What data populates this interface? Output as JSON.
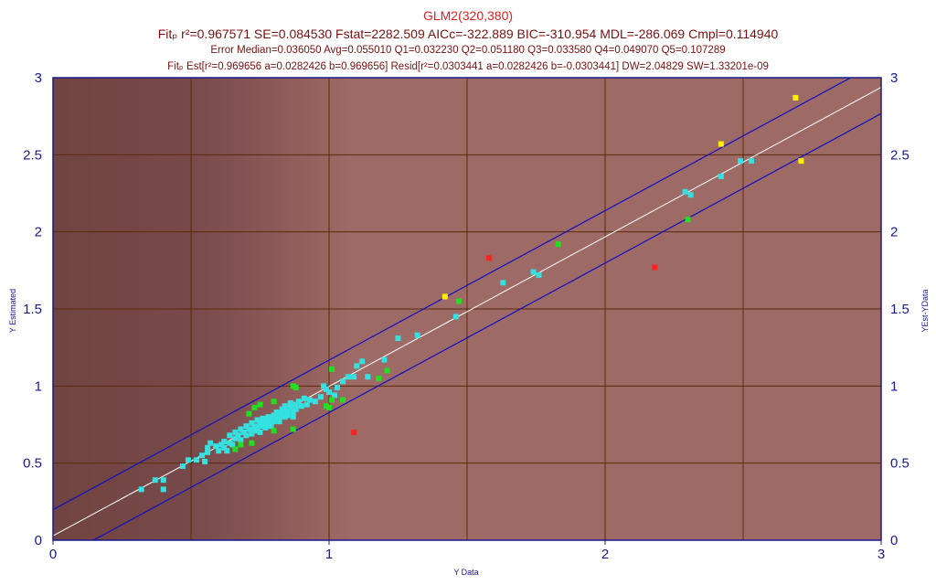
{
  "header": {
    "title": "GLM2(320,380)",
    "fit_line": "Fitₚ r²=0.967571 SE=0.084530 Fstat=2282.509 AICc=-322.889 BIC=-310.954 MDL=-286.069 Cmpl=0.114940",
    "error_line": "Error Median=0.036050 Avg=0.055010 Q1=0.032230 Q2=0.051180 Q3=0.033580 Q4=0.049070 Q5=0.107289",
    "est_line": "Fitₚ Est[r²=0.969656 a=0.0282426 b=0.969656] Resid[r²=0.0303441 a=0.0282426 b=-0.0303441] DW=2.04829 SW=1.33201e-09"
  },
  "chart_data": {
    "type": "scatter",
    "xlabel": "Y Data",
    "ylabel": "Y Estimated",
    "y2label": "YEst-YData",
    "xlim": [
      0,
      3
    ],
    "ylim": [
      0,
      3
    ],
    "x_ticks": [
      "0",
      "1",
      "2",
      "3"
    ],
    "y_ticks": [
      "0",
      "0.5",
      "1",
      "1.5",
      "2",
      "2.5",
      "3"
    ],
    "grid": true,
    "colors": {
      "background_dark": "#7a4a48",
      "background_light": "#9e6a66",
      "grid": "#5a2a08",
      "bounds": "#1010c0",
      "fit_line": "#ffffff",
      "border": "#1a1a8c"
    },
    "fit_line": {
      "a": 0.0282426,
      "b": 0.969656
    },
    "bounds_offset": 0.17,
    "series": [
      {
        "color": "#35e0e0",
        "points": [
          [
            0.32,
            0.33
          ],
          [
            0.37,
            0.39
          ],
          [
            0.4,
            0.39
          ],
          [
            0.4,
            0.33
          ],
          [
            0.47,
            0.48
          ],
          [
            0.49,
            0.52
          ],
          [
            0.52,
            0.52
          ],
          [
            0.54,
            0.55
          ],
          [
            0.55,
            0.51
          ],
          [
            0.56,
            0.57
          ],
          [
            0.56,
            0.6
          ],
          [
            0.57,
            0.63
          ],
          [
            0.59,
            0.61
          ],
          [
            0.6,
            0.58
          ],
          [
            0.61,
            0.62
          ],
          [
            0.62,
            0.6
          ],
          [
            0.62,
            0.64
          ],
          [
            0.63,
            0.58
          ],
          [
            0.64,
            0.63
          ],
          [
            0.64,
            0.68
          ],
          [
            0.65,
            0.62
          ],
          [
            0.66,
            0.66
          ],
          [
            0.66,
            0.7
          ],
          [
            0.67,
            0.68
          ],
          [
            0.68,
            0.65
          ],
          [
            0.68,
            0.72
          ],
          [
            0.69,
            0.7
          ],
          [
            0.7,
            0.74
          ],
          [
            0.7,
            0.68
          ],
          [
            0.71,
            0.72
          ],
          [
            0.72,
            0.69
          ],
          [
            0.72,
            0.76
          ],
          [
            0.73,
            0.74
          ],
          [
            0.73,
            0.71
          ],
          [
            0.74,
            0.78
          ],
          [
            0.74,
            0.73
          ],
          [
            0.75,
            0.7
          ],
          [
            0.75,
            0.76
          ],
          [
            0.76,
            0.79
          ],
          [
            0.76,
            0.74
          ],
          [
            0.77,
            0.77
          ],
          [
            0.77,
            0.73
          ],
          [
            0.78,
            0.8
          ],
          [
            0.78,
            0.76
          ],
          [
            0.79,
            0.78
          ],
          [
            0.79,
            0.74
          ],
          [
            0.8,
            0.81
          ],
          [
            0.8,
            0.77
          ],
          [
            0.81,
            0.79
          ],
          [
            0.81,
            0.83
          ],
          [
            0.82,
            0.8
          ],
          [
            0.82,
            0.77
          ],
          [
            0.83,
            0.82
          ],
          [
            0.83,
            0.85
          ],
          [
            0.84,
            0.8
          ],
          [
            0.84,
            0.87
          ],
          [
            0.85,
            0.84
          ],
          [
            0.85,
            0.81
          ],
          [
            0.86,
            0.86
          ],
          [
            0.86,
            0.89
          ],
          [
            0.87,
            0.83
          ],
          [
            0.87,
            0.8
          ],
          [
            0.88,
            0.88
          ],
          [
            0.88,
            0.85
          ],
          [
            0.89,
            0.9
          ],
          [
            0.9,
            0.87
          ],
          [
            0.91,
            0.92
          ],
          [
            0.92,
            0.88
          ],
          [
            0.93,
            0.91
          ],
          [
            0.95,
            0.9
          ],
          [
            0.97,
            0.93
          ],
          [
            0.98,
            1.0
          ],
          [
            0.99,
            0.98
          ],
          [
            1.0,
            0.96
          ],
          [
            1.02,
            0.94
          ],
          [
            1.03,
            0.99
          ],
          [
            1.05,
            1.03
          ],
          [
            1.07,
            1.06
          ],
          [
            1.09,
            1.06
          ],
          [
            1.1,
            1.13
          ],
          [
            1.12,
            1.16
          ],
          [
            1.14,
            1.06
          ],
          [
            1.2,
            1.17
          ],
          [
            1.25,
            1.31
          ],
          [
            1.32,
            1.33
          ],
          [
            1.46,
            1.45
          ],
          [
            1.63,
            1.67
          ],
          [
            1.74,
            1.74
          ],
          [
            1.76,
            1.72
          ],
          [
            2.29,
            2.26
          ],
          [
            2.31,
            2.24
          ],
          [
            2.42,
            2.36
          ],
          [
            2.49,
            2.46
          ],
          [
            2.53,
            2.46
          ]
        ]
      },
      {
        "color": "#20e020",
        "points": [
          [
            0.66,
            0.59
          ],
          [
            0.68,
            0.62
          ],
          [
            0.71,
            0.82
          ],
          [
            0.72,
            0.63
          ],
          [
            0.73,
            0.86
          ],
          [
            0.75,
            0.88
          ],
          [
            0.8,
            0.71
          ],
          [
            0.8,
            0.9
          ],
          [
            0.87,
            0.72
          ],
          [
            0.87,
            1.0
          ],
          [
            0.88,
            0.99
          ],
          [
            0.99,
            0.87
          ],
          [
            1.0,
            0.86
          ],
          [
            1.01,
            0.91
          ],
          [
            1.01,
            1.11
          ],
          [
            1.05,
            0.91
          ],
          [
            1.18,
            1.05
          ],
          [
            1.21,
            1.1
          ],
          [
            1.47,
            1.55
          ],
          [
            1.83,
            1.92
          ],
          [
            2.3,
            2.08
          ]
        ]
      },
      {
        "color": "#ff2020",
        "points": [
          [
            1.09,
            0.7
          ],
          [
            1.58,
            1.83
          ],
          [
            2.18,
            1.77
          ]
        ]
      },
      {
        "color": "#ffee00",
        "points": [
          [
            1.42,
            1.58
          ],
          [
            2.42,
            2.57
          ],
          [
            2.69,
            2.87
          ],
          [
            2.71,
            2.46
          ]
        ]
      }
    ]
  }
}
